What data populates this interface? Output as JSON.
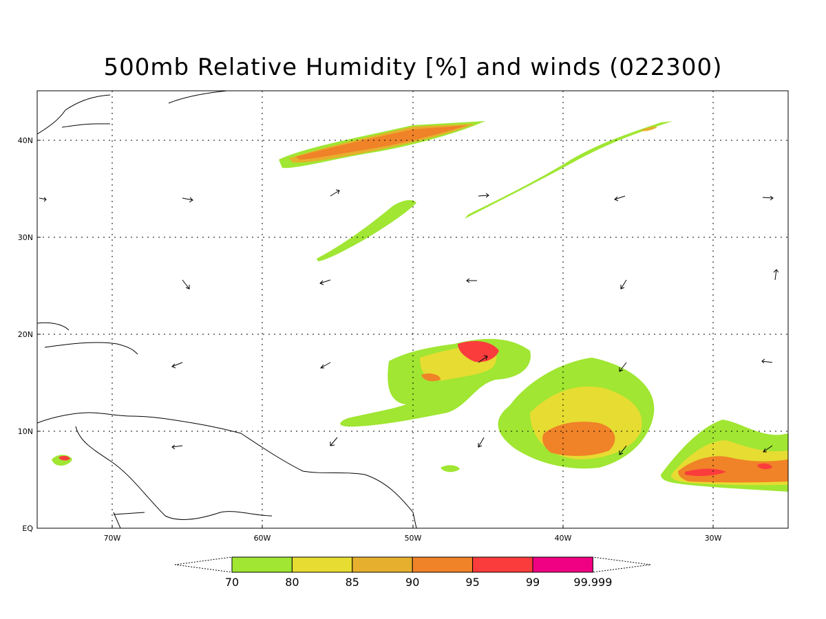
{
  "title": "500mb Relative Humidity [%] and winds (022300)",
  "lat_labels": [
    "EQ",
    "10N",
    "20N",
    "30N",
    "40N"
  ],
  "lon_labels": [
    "70W",
    "60W",
    "50W",
    "40W",
    "30W"
  ],
  "colorbar": {
    "bins": [
      {
        "label": "70",
        "color": "#a0e632"
      },
      {
        "label": "80",
        "color": "#e6dc32"
      },
      {
        "label": "85",
        "color": "#e6af2d"
      },
      {
        "label": "90",
        "color": "#f08228"
      },
      {
        "label": "95",
        "color": "#fa3c3c"
      },
      {
        "label": "99",
        "color": "#f00082"
      },
      {
        "label": "99.999",
        "color": ""
      }
    ]
  },
  "colors": {
    "rh70": "#a0e632",
    "rh80": "#e6dc32",
    "rh85": "#e6af2d",
    "rh90": "#f08228",
    "rh95": "#fa3c3c",
    "rh99": "#f00082"
  }
}
